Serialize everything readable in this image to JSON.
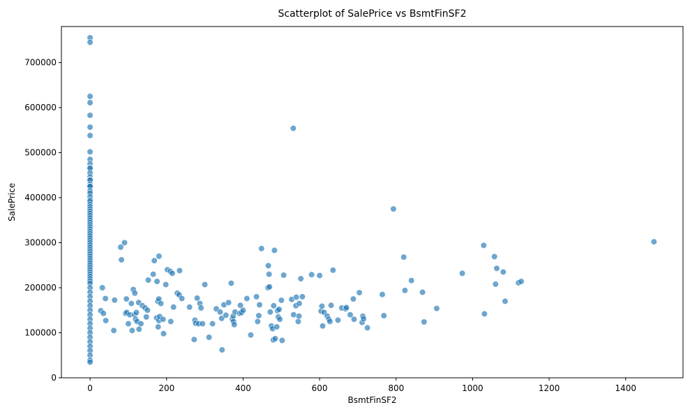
{
  "chart_data": {
    "type": "scatter",
    "title": "Scatterplot of SalePrice vs BsmtFinSF2",
    "xlabel": "BsmtFinSF2",
    "ylabel": "SalePrice",
    "xlim": [
      -75,
      1550
    ],
    "ylim": [
      0,
      780000
    ],
    "xticks": [
      0,
      200,
      400,
      600,
      800,
      1000,
      1200,
      1400
    ],
    "yticks": [
      0,
      100000,
      200000,
      300000,
      400000,
      500000,
      600000,
      700000
    ],
    "grid": false,
    "point_color": "#1f77b4",
    "point_opacity": 0.65,
    "x": [
      0,
      0,
      0,
      0,
      0,
      0,
      0,
      0,
      0,
      0,
      0,
      0,
      0,
      0,
      0,
      0,
      0,
      0,
      0,
      0,
      0,
      0,
      0,
      0,
      0,
      0,
      0,
      0,
      0,
      0,
      0,
      0,
      0,
      0,
      0,
      0,
      0,
      0,
      0,
      0,
      0,
      0,
      0,
      0,
      0,
      0,
      0,
      0,
      0,
      0,
      0,
      0,
      0,
      0,
      0,
      0,
      0,
      0,
      0,
      0,
      0,
      0,
      0,
      0,
      0,
      0,
      0,
      0,
      0,
      0,
      0,
      0,
      0,
      0,
      0,
      0,
      0,
      0,
      28,
      32,
      35,
      40,
      41,
      62,
      64,
      80,
      82,
      90,
      93,
      95,
      96,
      100,
      104,
      108,
      110,
      113,
      116,
      117,
      119,
      121,
      123,
      127,
      128,
      133,
      137,
      144,
      147,
      150,
      152,
      165,
      168,
      174,
      175,
      177,
      178,
      180,
      180,
      180,
      182,
      185,
      191,
      192,
      198,
      202,
      210,
      211,
      215,
      218,
      228,
      233,
      234,
      240,
      260,
      272,
      274,
      276,
      280,
      284,
      287,
      290,
      294,
      300,
      311,
      320,
      330,
      340,
      344,
      345,
      350,
      355,
      362,
      369,
      372,
      374,
      375,
      377,
      379,
      391,
      393,
      396,
      400,
      410,
      420,
      435,
      438,
      441,
      443,
      448,
      465,
      466,
      468,
      469,
      471,
      474,
      477,
      479,
      480,
      482,
      484,
      488,
      490,
      492,
      494,
      496,
      500,
      502,
      506,
      527,
      531,
      532,
      538,
      539,
      544,
      546,
      547,
      551,
      555,
      579,
      600,
      604,
      606,
      608,
      612,
      620,
      624,
      627,
      630,
      635,
      648,
      658,
      668,
      670,
      680,
      688,
      690,
      704,
      711,
      713,
      715,
      725,
      764,
      768,
      793,
      820,
      823,
      840,
      869,
      873,
      906,
      973,
      1029,
      1031,
      1057,
      1060,
      1063,
      1080,
      1085,
      1120,
      1127,
      1474
    ],
    "y": [
      755000,
      745000,
      625000,
      611000,
      582933,
      556581,
      538000,
      501837,
      485000,
      475000,
      466500,
      465000,
      455000,
      446261,
      440000,
      438780,
      430000,
      426000,
      424870,
      415298,
      410000,
      402000,
      395000,
      392000,
      385000,
      380000,
      375000,
      370000,
      365000,
      360000,
      355000,
      350000,
      345000,
      340000,
      335000,
      330000,
      325000,
      320000,
      315000,
      310000,
      305000,
      300000,
      295000,
      290000,
      285000,
      280000,
      275000,
      270000,
      265000,
      260000,
      255000,
      250000,
      245000,
      240000,
      235000,
      230000,
      225000,
      220000,
      215000,
      210000,
      200000,
      190000,
      180000,
      170000,
      160000,
      150000,
      140000,
      130000,
      120000,
      110000,
      100000,
      90000,
      80000,
      70000,
      60000,
      50000,
      39300,
      34900,
      149000,
      200000,
      143000,
      176000,
      127000,
      105000,
      172500,
      290000,
      262000,
      300000,
      143000,
      175000,
      145000,
      120000,
      140000,
      165000,
      105000,
      196000,
      140000,
      188000,
      130000,
      145000,
      125000,
      167000,
      108000,
      120000,
      160000,
      155000,
      135000,
      150000,
      217000,
      230000,
      260000,
      133000,
      214000,
      170000,
      113000,
      127000,
      175000,
      270000,
      136000,
      165000,
      130000,
      98000,
      207000,
      240000,
      236000,
      125000,
      232000,
      157000,
      188000,
      184000,
      238000,
      176000,
      157000,
      85000,
      128000,
      121000,
      177000,
      120000,
      165000,
      155000,
      120000,
      207000,
      90000,
      120000,
      153000,
      146000,
      132000,
      62000,
      162000,
      139000,
      167000,
      210000,
      130000,
      137000,
      125000,
      118000,
      146000,
      143000,
      161000,
      145000,
      150000,
      176000,
      95000,
      180000,
      125000,
      138000,
      162000,
      287000,
      200000,
      249000,
      230000,
      202000,
      146000,
      115000,
      109000,
      84000,
      160000,
      283000,
      87000,
      113000,
      149000,
      135000,
      152000,
      130000,
      172000,
      83000,
      228000,
      174000,
      554000,
      140000,
      160000,
      179000,
      125000,
      137000,
      165000,
      220000,
      180000,
      229000,
      227000,
      148000,
      159000,
      115000,
      145000,
      137000,
      130000,
      125000,
      161000,
      239000,
      128000,
      155000,
      153000,
      156000,
      140000,
      175000,
      130000,
      189000,
      123000,
      137000,
      131000,
      111000,
      185000,
      138000,
      375000,
      268000,
      194000,
      216000,
      190000,
      124000,
      154000,
      232000,
      294000,
      142000,
      269000,
      208000,
      243000,
      235000,
      170000,
      211000,
      214000,
      302000
    ]
  }
}
